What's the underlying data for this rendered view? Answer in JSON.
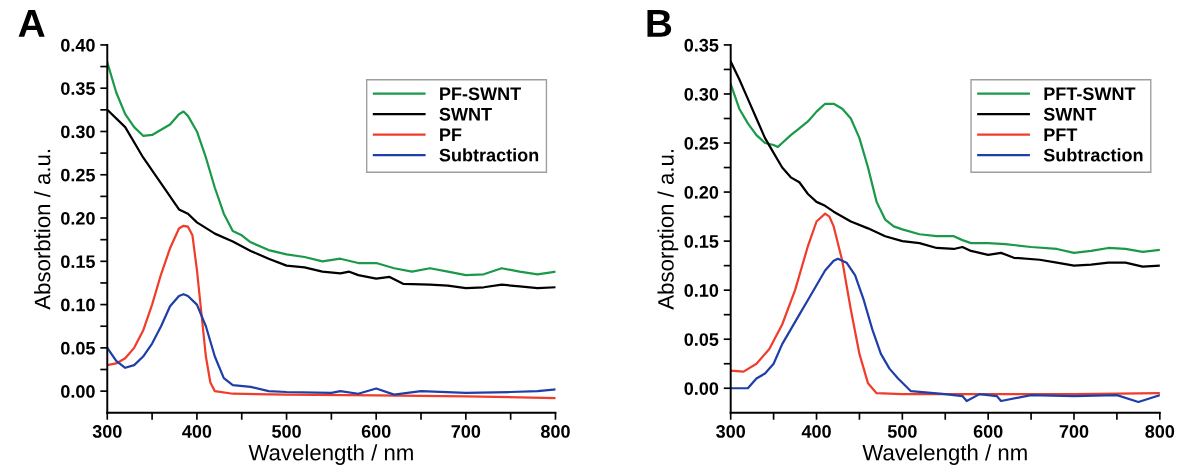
{
  "chart_data": [
    {
      "type": "line",
      "title": "A",
      "xlabel": "Wavelength / nm",
      "ylabel": "Absorbtion / a.u.",
      "xlim": [
        300,
        800
      ],
      "ylim": [
        -0.025,
        0.4
      ],
      "xticks": [
        300,
        {
          "value": 350,
          "label": null
        },
        400,
        {
          "value": 450,
          "label": null
        },
        500,
        {
          "value": 550,
          "label": null
        },
        600,
        {
          "value": 650,
          "label": null
        },
        700,
        {
          "value": 750,
          "label": null
        },
        800
      ],
      "yticks": [
        {
          "value": 0,
          "label": "0.00"
        },
        {
          "value": 0.025,
          "label": null
        },
        {
          "value": 0.05,
          "label": "0.05"
        },
        {
          "value": 0.075,
          "label": null
        },
        {
          "value": 0.1,
          "label": "0.10"
        },
        {
          "value": 0.125,
          "label": null
        },
        {
          "value": 0.15,
          "label": "0.15"
        },
        {
          "value": 0.175,
          "label": null
        },
        {
          "value": 0.2,
          "label": "0.20"
        },
        {
          "value": 0.225,
          "label": null
        },
        {
          "value": 0.25,
          "label": "0.25"
        },
        {
          "value": 0.275,
          "label": null
        },
        {
          "value": 0.3,
          "label": "0.30"
        },
        {
          "value": 0.325,
          "label": null
        },
        {
          "value": 0.35,
          "label": "0.35"
        },
        {
          "value": 0.375,
          "label": null
        },
        {
          "value": 0.4,
          "label": "0.40"
        }
      ],
      "grid": false,
      "legend": "top right",
      "marker": "none",
      "line_style": "solid",
      "series": [
        {
          "name": "PF-SWNT",
          "color": "#1a9a48",
          "x": [
            300,
            310,
            320,
            330,
            340,
            350,
            360,
            370,
            380,
            385,
            390,
            400,
            410,
            420,
            430,
            440,
            450,
            460,
            480,
            500,
            520,
            540,
            560,
            580,
            600,
            620,
            640,
            660,
            680,
            700,
            720,
            740,
            760,
            780,
            800
          ],
          "values": [
            0.38,
            0.345,
            0.32,
            0.305,
            0.295,
            0.296,
            0.302,
            0.308,
            0.32,
            0.323,
            0.318,
            0.3,
            0.27,
            0.235,
            0.205,
            0.185,
            0.18,
            0.172,
            0.163,
            0.158,
            0.155,
            0.15,
            0.153,
            0.148,
            0.148,
            0.142,
            0.138,
            0.142,
            0.138,
            0.134,
            0.135,
            0.142,
            0.138,
            0.135,
            0.138
          ]
        },
        {
          "name": "SWNT",
          "color": "#000000",
          "x": [
            300,
            320,
            340,
            360,
            380,
            390,
            400,
            420,
            440,
            460,
            480,
            500,
            520,
            540,
            560,
            570,
            580,
            600,
            615,
            630,
            660,
            680,
            700,
            720,
            740,
            760,
            780,
            800
          ],
          "values": [
            0.325,
            0.305,
            0.27,
            0.24,
            0.21,
            0.205,
            0.195,
            0.182,
            0.173,
            0.162,
            0.153,
            0.145,
            0.143,
            0.138,
            0.136,
            0.138,
            0.134,
            0.13,
            0.132,
            0.124,
            0.123,
            0.122,
            0.119,
            0.12,
            0.123,
            0.121,
            0.119,
            0.12
          ]
        },
        {
          "name": "PF",
          "color": "#f03c2a",
          "x": [
            300,
            310,
            320,
            330,
            340,
            350,
            360,
            370,
            380,
            385,
            390,
            395,
            400,
            405,
            410,
            415,
            420,
            440,
            500,
            600,
            700,
            800
          ],
          "values": [
            0.03,
            0.032,
            0.038,
            0.05,
            0.07,
            0.1,
            0.135,
            0.165,
            0.188,
            0.191,
            0.19,
            0.18,
            0.14,
            0.09,
            0.04,
            0.01,
            0.0,
            -0.003,
            -0.004,
            -0.005,
            -0.006,
            -0.008
          ]
        },
        {
          "name": "Subtraction",
          "color": "#1f3fa8",
          "x": [
            300,
            310,
            320,
            330,
            340,
            350,
            360,
            370,
            380,
            385,
            390,
            400,
            410,
            420,
            430,
            440,
            460,
            480,
            500,
            550,
            560,
            580,
            600,
            620,
            650,
            700,
            750,
            780,
            800
          ],
          "values": [
            0.05,
            0.035,
            0.027,
            0.03,
            0.04,
            0.055,
            0.075,
            0.098,
            0.11,
            0.112,
            0.11,
            0.1,
            0.075,
            0.04,
            0.015,
            0.007,
            0.005,
            0.0,
            -0.001,
            -0.002,
            0.0,
            -0.003,
            0.003,
            -0.004,
            0.0,
            -0.002,
            -0.001,
            0.0,
            0.002
          ]
        }
      ]
    },
    {
      "type": "line",
      "title": "B",
      "xlabel": "Wavelength / nm",
      "ylabel": "Absorption / a.u.",
      "xlim": [
        300,
        800
      ],
      "ylim": [
        -0.025,
        0.35
      ],
      "xticks": [
        300,
        {
          "value": 350,
          "label": null
        },
        400,
        {
          "value": 450,
          "label": null
        },
        500,
        {
          "value": 550,
          "label": null
        },
        600,
        {
          "value": 650,
          "label": null
        },
        700,
        {
          "value": 750,
          "label": null
        },
        800
      ],
      "yticks": [
        {
          "value": 0,
          "label": "0.00"
        },
        {
          "value": 0.025,
          "label": null
        },
        {
          "value": 0.05,
          "label": "0.05"
        },
        {
          "value": 0.075,
          "label": null
        },
        {
          "value": 0.1,
          "label": "0.10"
        },
        {
          "value": 0.125,
          "label": null
        },
        {
          "value": 0.15,
          "label": "0.15"
        },
        {
          "value": 0.175,
          "label": null
        },
        {
          "value": 0.2,
          "label": "0.20"
        },
        {
          "value": 0.225,
          "label": null
        },
        {
          "value": 0.25,
          "label": "0.25"
        },
        {
          "value": 0.275,
          "label": null
        },
        {
          "value": 0.3,
          "label": "0.30"
        },
        {
          "value": 0.325,
          "label": null
        },
        {
          "value": 0.35,
          "label": "0.35"
        }
      ],
      "grid": false,
      "legend": "top right",
      "marker": "none",
      "line_style": "solid",
      "series": [
        {
          "name": "PFT-SWNT",
          "color": "#1a9a48",
          "x": [
            300,
            310,
            320,
            330,
            340,
            350,
            355,
            360,
            370,
            380,
            390,
            400,
            410,
            420,
            430,
            440,
            450,
            460,
            470,
            480,
            490,
            500,
            520,
            540,
            560,
            570,
            580,
            600,
            620,
            650,
            680,
            700,
            720,
            740,
            760,
            780,
            800
          ],
          "values": [
            0.31,
            0.285,
            0.27,
            0.258,
            0.25,
            0.248,
            0.246,
            0.25,
            0.258,
            0.265,
            0.272,
            0.282,
            0.29,
            0.29,
            0.285,
            0.275,
            0.255,
            0.225,
            0.19,
            0.172,
            0.165,
            0.162,
            0.157,
            0.155,
            0.155,
            0.151,
            0.148,
            0.148,
            0.147,
            0.144,
            0.142,
            0.138,
            0.14,
            0.143,
            0.142,
            0.139,
            0.141
          ]
        },
        {
          "name": "SWNT",
          "color": "#000000",
          "x": [
            300,
            310,
            320,
            330,
            340,
            350,
            360,
            370,
            380,
            390,
            400,
            410,
            420,
            440,
            460,
            480,
            500,
            520,
            540,
            560,
            570,
            580,
            600,
            615,
            630,
            660,
            680,
            700,
            720,
            740,
            760,
            780,
            800
          ],
          "values": [
            0.333,
            0.315,
            0.295,
            0.275,
            0.255,
            0.24,
            0.225,
            0.215,
            0.21,
            0.198,
            0.19,
            0.186,
            0.18,
            0.17,
            0.163,
            0.155,
            0.15,
            0.148,
            0.143,
            0.142,
            0.144,
            0.14,
            0.136,
            0.138,
            0.133,
            0.131,
            0.128,
            0.125,
            0.126,
            0.128,
            0.128,
            0.124,
            0.125
          ]
        },
        {
          "name": "PFT",
          "color": "#f03c2a",
          "x": [
            300,
            315,
            330,
            345,
            360,
            375,
            390,
            400,
            410,
            415,
            420,
            430,
            440,
            450,
            460,
            470,
            500,
            600,
            700,
            800
          ],
          "values": [
            0.018,
            0.017,
            0.025,
            0.04,
            0.065,
            0.1,
            0.145,
            0.17,
            0.178,
            0.175,
            0.165,
            0.13,
            0.08,
            0.035,
            0.005,
            -0.005,
            -0.006,
            -0.006,
            -0.006,
            -0.005
          ]
        },
        {
          "name": "Subtraction",
          "color": "#1f3fa8",
          "x": [
            300,
            320,
            330,
            340,
            350,
            360,
            370,
            380,
            390,
            400,
            410,
            420,
            425,
            435,
            445,
            455,
            465,
            475,
            485,
            495,
            510,
            550,
            570,
            575,
            590,
            610,
            615,
            650,
            700,
            750,
            775,
            800
          ],
          "values": [
            0.0,
            0.0,
            0.01,
            0.015,
            0.025,
            0.045,
            0.06,
            0.075,
            0.09,
            0.105,
            0.12,
            0.13,
            0.132,
            0.128,
            0.115,
            0.09,
            0.06,
            0.035,
            0.02,
            0.01,
            -0.003,
            -0.006,
            -0.008,
            -0.013,
            -0.006,
            -0.008,
            -0.013,
            -0.007,
            -0.008,
            -0.007,
            -0.014,
            -0.007
          ]
        }
      ]
    }
  ]
}
